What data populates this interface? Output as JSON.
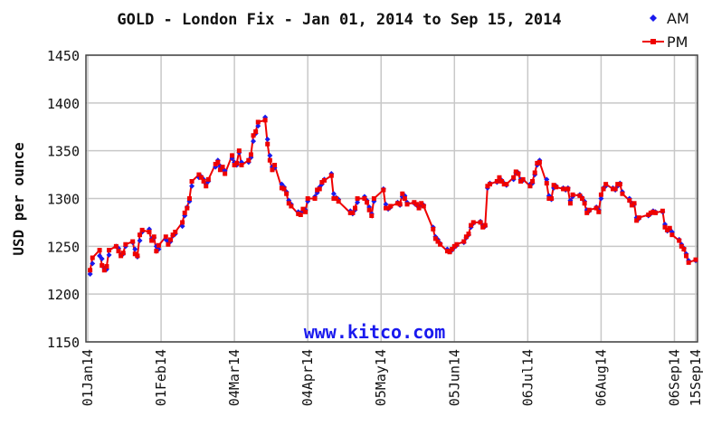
{
  "chart_data": {
    "type": "line",
    "title": "GOLD - London Fix - Jan 01, 2014 to Sep 15, 2014",
    "y_label": "USD per ounce",
    "annotation": "www.kitco.com",
    "legend": "top-right",
    "grid": true,
    "xlim": [
      "2014-01-01",
      "2014-09-15"
    ],
    "xticks": [
      {
        "value": "2014-01-01",
        "label": "01Jan14"
      },
      {
        "value": "2014-02-01",
        "label": "01Feb14"
      },
      {
        "value": "2014-03-04",
        "label": "04Mar14"
      },
      {
        "value": "2014-04-04",
        "label": "04Apr14"
      },
      {
        "value": "2014-05-05",
        "label": "05May14"
      },
      {
        "value": "2014-06-05",
        "label": "05Jun14"
      },
      {
        "value": "2014-07-06",
        "label": "06Jul14"
      },
      {
        "value": "2014-08-06",
        "label": "06Aug14"
      },
      {
        "value": "2014-09-06",
        "label": "06Sep14"
      },
      {
        "value": "2014-09-15",
        "label": "15Sep14"
      }
    ],
    "ylim": [
      1150,
      1450
    ],
    "yticks": [
      1150,
      1200,
      1250,
      1300,
      1350,
      1400,
      1450
    ],
    "x": [
      "2014-01-02",
      "2014-01-03",
      "2014-01-06",
      "2014-01-07",
      "2014-01-08",
      "2014-01-09",
      "2014-01-10",
      "2014-01-13",
      "2014-01-14",
      "2014-01-15",
      "2014-01-16",
      "2014-01-17",
      "2014-01-20",
      "2014-01-21",
      "2014-01-22",
      "2014-01-23",
      "2014-01-24",
      "2014-01-27",
      "2014-01-28",
      "2014-01-29",
      "2014-01-30",
      "2014-01-31",
      "2014-02-03",
      "2014-02-04",
      "2014-02-05",
      "2014-02-06",
      "2014-02-07",
      "2014-02-10",
      "2014-02-11",
      "2014-02-12",
      "2014-02-13",
      "2014-02-14",
      "2014-02-17",
      "2014-02-18",
      "2014-02-19",
      "2014-02-20",
      "2014-02-21",
      "2014-02-24",
      "2014-02-25",
      "2014-02-26",
      "2014-02-27",
      "2014-02-28",
      "2014-03-03",
      "2014-03-04",
      "2014-03-05",
      "2014-03-06",
      "2014-03-07",
      "2014-03-10",
      "2014-03-11",
      "2014-03-12",
      "2014-03-13",
      "2014-03-14",
      "2014-03-17",
      "2014-03-18",
      "2014-03-19",
      "2014-03-20",
      "2014-03-21",
      "2014-03-24",
      "2014-03-25",
      "2014-03-26",
      "2014-03-27",
      "2014-03-28",
      "2014-03-31",
      "2014-04-01",
      "2014-04-02",
      "2014-04-03",
      "2014-04-04",
      "2014-04-07",
      "2014-04-08",
      "2014-04-09",
      "2014-04-10",
      "2014-04-11",
      "2014-04-14",
      "2014-04-15",
      "2014-04-16",
      "2014-04-17",
      "2014-04-22",
      "2014-04-23",
      "2014-04-24",
      "2014-04-25",
      "2014-04-28",
      "2014-04-29",
      "2014-04-30",
      "2014-05-01",
      "2014-05-02",
      "2014-05-06",
      "2014-05-07",
      "2014-05-08",
      "2014-05-09",
      "2014-05-12",
      "2014-05-13",
      "2014-05-14",
      "2014-05-15",
      "2014-05-16",
      "2014-05-19",
      "2014-05-20",
      "2014-05-21",
      "2014-05-22",
      "2014-05-23",
      "2014-05-27",
      "2014-05-28",
      "2014-05-29",
      "2014-05-30",
      "2014-06-02",
      "2014-06-03",
      "2014-06-04",
      "2014-06-05",
      "2014-06-06",
      "2014-06-09",
      "2014-06-10",
      "2014-06-11",
      "2014-06-12",
      "2014-06-13",
      "2014-06-16",
      "2014-06-17",
      "2014-06-18",
      "2014-06-19",
      "2014-06-20",
      "2014-06-23",
      "2014-06-24",
      "2014-06-25",
      "2014-06-26",
      "2014-06-27",
      "2014-06-30",
      "2014-07-01",
      "2014-07-02",
      "2014-07-03",
      "2014-07-04",
      "2014-07-07",
      "2014-07-08",
      "2014-07-09",
      "2014-07-10",
      "2014-07-11",
      "2014-07-14",
      "2014-07-15",
      "2014-07-16",
      "2014-07-17",
      "2014-07-18",
      "2014-07-21",
      "2014-07-22",
      "2014-07-23",
      "2014-07-24",
      "2014-07-25",
      "2014-07-28",
      "2014-07-29",
      "2014-07-30",
      "2014-07-31",
      "2014-08-01",
      "2014-08-04",
      "2014-08-05",
      "2014-08-06",
      "2014-08-07",
      "2014-08-08",
      "2014-08-11",
      "2014-08-12",
      "2014-08-13",
      "2014-08-14",
      "2014-08-15",
      "2014-08-18",
      "2014-08-19",
      "2014-08-20",
      "2014-08-21",
      "2014-08-22",
      "2014-08-26",
      "2014-08-27",
      "2014-08-28",
      "2014-08-29",
      "2014-09-01",
      "2014-09-02",
      "2014-09-03",
      "2014-09-04",
      "2014-09-05",
      "2014-09-08",
      "2014-09-09",
      "2014-09-10",
      "2014-09-11",
      "2014-09-12",
      "2014-09-15"
    ],
    "series": [
      {
        "name": "AM",
        "color": "#1a1aee",
        "marker": "diamond",
        "line": false,
        "values": [
          1221,
          1232,
          1240,
          1237,
          1227,
          1226,
          1241,
          1250,
          1248,
          1241,
          1242,
          1250,
          1254,
          1247,
          1239,
          1256,
          1265,
          1268,
          1258,
          1259,
          1250,
          1247,
          1257,
          1255,
          1255,
          1261,
          1263,
          1271,
          1282,
          1291,
          1297,
          1313,
          1322,
          1323,
          1320,
          1315,
          1318,
          1333,
          1340,
          1334,
          1331,
          1329,
          1342,
          1338,
          1335,
          1348,
          1338,
          1338,
          1343,
          1360,
          1368,
          1376,
          1385,
          1362,
          1345,
          1333,
          1332,
          1315,
          1312,
          1307,
          1298,
          1294,
          1286,
          1285,
          1287,
          1288,
          1297,
          1302,
          1306,
          1312,
          1315,
          1320,
          1326,
          1305,
          1301,
          1299,
          1287,
          1284,
          1288,
          1296,
          1302,
          1298,
          1291,
          1284,
          1297,
          1310,
          1294,
          1289,
          1291,
          1296,
          1293,
          1302,
          1303,
          1296,
          1295,
          1293,
          1291,
          1294,
          1293,
          1270,
          1260,
          1257,
          1253,
          1247,
          1245,
          1246,
          1249,
          1251,
          1254,
          1259,
          1262,
          1270,
          1274,
          1276,
          1272,
          1271,
          1311,
          1316,
          1317,
          1320,
          1319,
          1316,
          1314,
          1320,
          1327,
          1327,
          1320,
          1319,
          1315,
          1316,
          1325,
          1335,
          1340,
          1320,
          1303,
          1299,
          1311,
          1313,
          1311,
          1309,
          1311,
          1298,
          1302,
          1304,
          1301,
          1297,
          1288,
          1287,
          1291,
          1288,
          1300,
          1311,
          1313,
          1311,
          1309,
          1313,
          1316,
          1307,
          1300,
          1295,
          1294,
          1280,
          1279,
          1282,
          1284,
          1287,
          1286,
          1286,
          1273,
          1266,
          1268,
          1265,
          1257,
          1252,
          1248,
          1242,
          1235,
          1235
        ]
      },
      {
        "name": "PM",
        "color": "#ee0000",
        "marker": "square",
        "line": true,
        "values": [
          1225,
          1238,
          1246,
          1230,
          1225,
          1229,
          1246,
          1250,
          1245,
          1240,
          1243,
          1252,
          1255,
          1242,
          1240,
          1262,
          1267,
          1265,
          1256,
          1260,
          1245,
          1251,
          1260,
          1252,
          1257,
          1262,
          1265,
          1275,
          1285,
          1290,
          1300,
          1318,
          1325,
          1322,
          1318,
          1313,
          1320,
          1336,
          1338,
          1330,
          1333,
          1326,
          1345,
          1335,
          1337,
          1350,
          1335,
          1340,
          1346,
          1366,
          1370,
          1380,
          1382,
          1357,
          1340,
          1330,
          1335,
          1311,
          1310,
          1305,
          1295,
          1292,
          1284,
          1283,
          1289,
          1286,
          1300,
          1300,
          1309,
          1310,
          1317,
          1319,
          1324,
          1300,
          1300,
          1297,
          1285,
          1285,
          1290,
          1300,
          1300,
          1296,
          1288,
          1282,
          1300,
          1309,
          1290,
          1290,
          1292,
          1295,
          1294,
          1305,
          1300,
          1294,
          1296,
          1294,
          1290,
          1295,
          1292,
          1268,
          1258,
          1255,
          1252,
          1245,
          1244,
          1247,
          1250,
          1252,
          1255,
          1260,
          1263,
          1272,
          1275,
          1275,
          1270,
          1272,
          1313,
          1315,
          1318,
          1322,
          1318,
          1315,
          1315,
          1322,
          1328,
          1326,
          1318,
          1320,
          1313,
          1318,
          1327,
          1337,
          1338,
          1316,
          1300,
          1300,
          1314,
          1312,
          1310,
          1310,
          1310,
          1295,
          1304,
          1303,
          1300,
          1295,
          1285,
          1288,
          1290,
          1286,
          1304,
          1310,
          1315,
          1310,
          1310,
          1315,
          1315,
          1305,
          1298,
          1293,
          1295,
          1277,
          1280,
          1283,
          1285,
          1286,
          1285,
          1287,
          1270,
          1267,
          1269,
          1262,
          1256,
          1250,
          1247,
          1240,
          1233,
          1236
        ]
      }
    ]
  }
}
